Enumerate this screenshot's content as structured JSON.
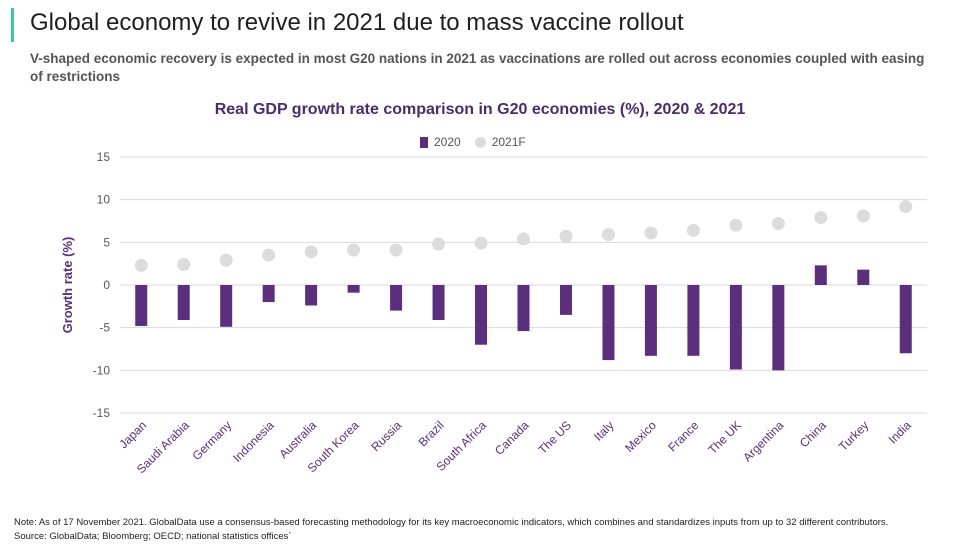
{
  "header": {
    "title": "Global economy to revive in 2021 due to mass vaccine rollout",
    "subtitle": "V-shaped economic recovery is expected in most G20 nations in 2021 as vaccinations are rolled out across economies coupled with easing of restrictions"
  },
  "chart_data": {
    "type": "bar",
    "title": "Real GDP growth rate comparison in G20 economies (%), 2020 & 2021",
    "ylabel": "Growth rate (%)",
    "xlabel": "",
    "ylim": [
      -15,
      15
    ],
    "yticks": [
      15,
      10,
      5,
      0,
      -5,
      -10,
      -15
    ],
    "grid": true,
    "legend_position": "top-center",
    "categories": [
      "Japan",
      "Saudi Arabia",
      "Germany",
      "Indonesia",
      "Australia",
      "South Korea",
      "Russia",
      "Brazil",
      "South Africa",
      "Canada",
      "The US",
      "Italy",
      "Mexico",
      "France",
      "The UK",
      "Argentina",
      "China",
      "Turkey",
      "India"
    ],
    "series": [
      {
        "name": "2020",
        "style": "bar",
        "color": "#5c2e7e",
        "values": [
          -4.8,
          -4.1,
          -4.9,
          -2.0,
          -2.4,
          -0.9,
          -3.0,
          -4.1,
          -7.0,
          -5.4,
          -3.5,
          -8.8,
          -8.3,
          -8.3,
          -9.9,
          -10.0,
          2.3,
          1.8,
          -8.0
        ]
      },
      {
        "name": "2021F",
        "style": "dot",
        "color": "#dcdcdc",
        "values": [
          2.3,
          2.4,
          2.9,
          3.5,
          3.9,
          4.1,
          4.1,
          4.8,
          4.9,
          5.4,
          5.7,
          5.9,
          6.1,
          6.4,
          7.0,
          7.2,
          7.9,
          8.1,
          9.2
        ]
      }
    ]
  },
  "legend": {
    "item_2020": "2020",
    "item_2021": "2021F"
  },
  "footer": {
    "note": "Note: As of 17 November 2021. GlobalData use a consensus-based forecasting methodology for its key macroeconomic indicators, which combines and standardizes inputs from up to 32 different contributors.",
    "source": "Source: GlobalData; Bloomberg; OECD; national statistics offices`"
  }
}
